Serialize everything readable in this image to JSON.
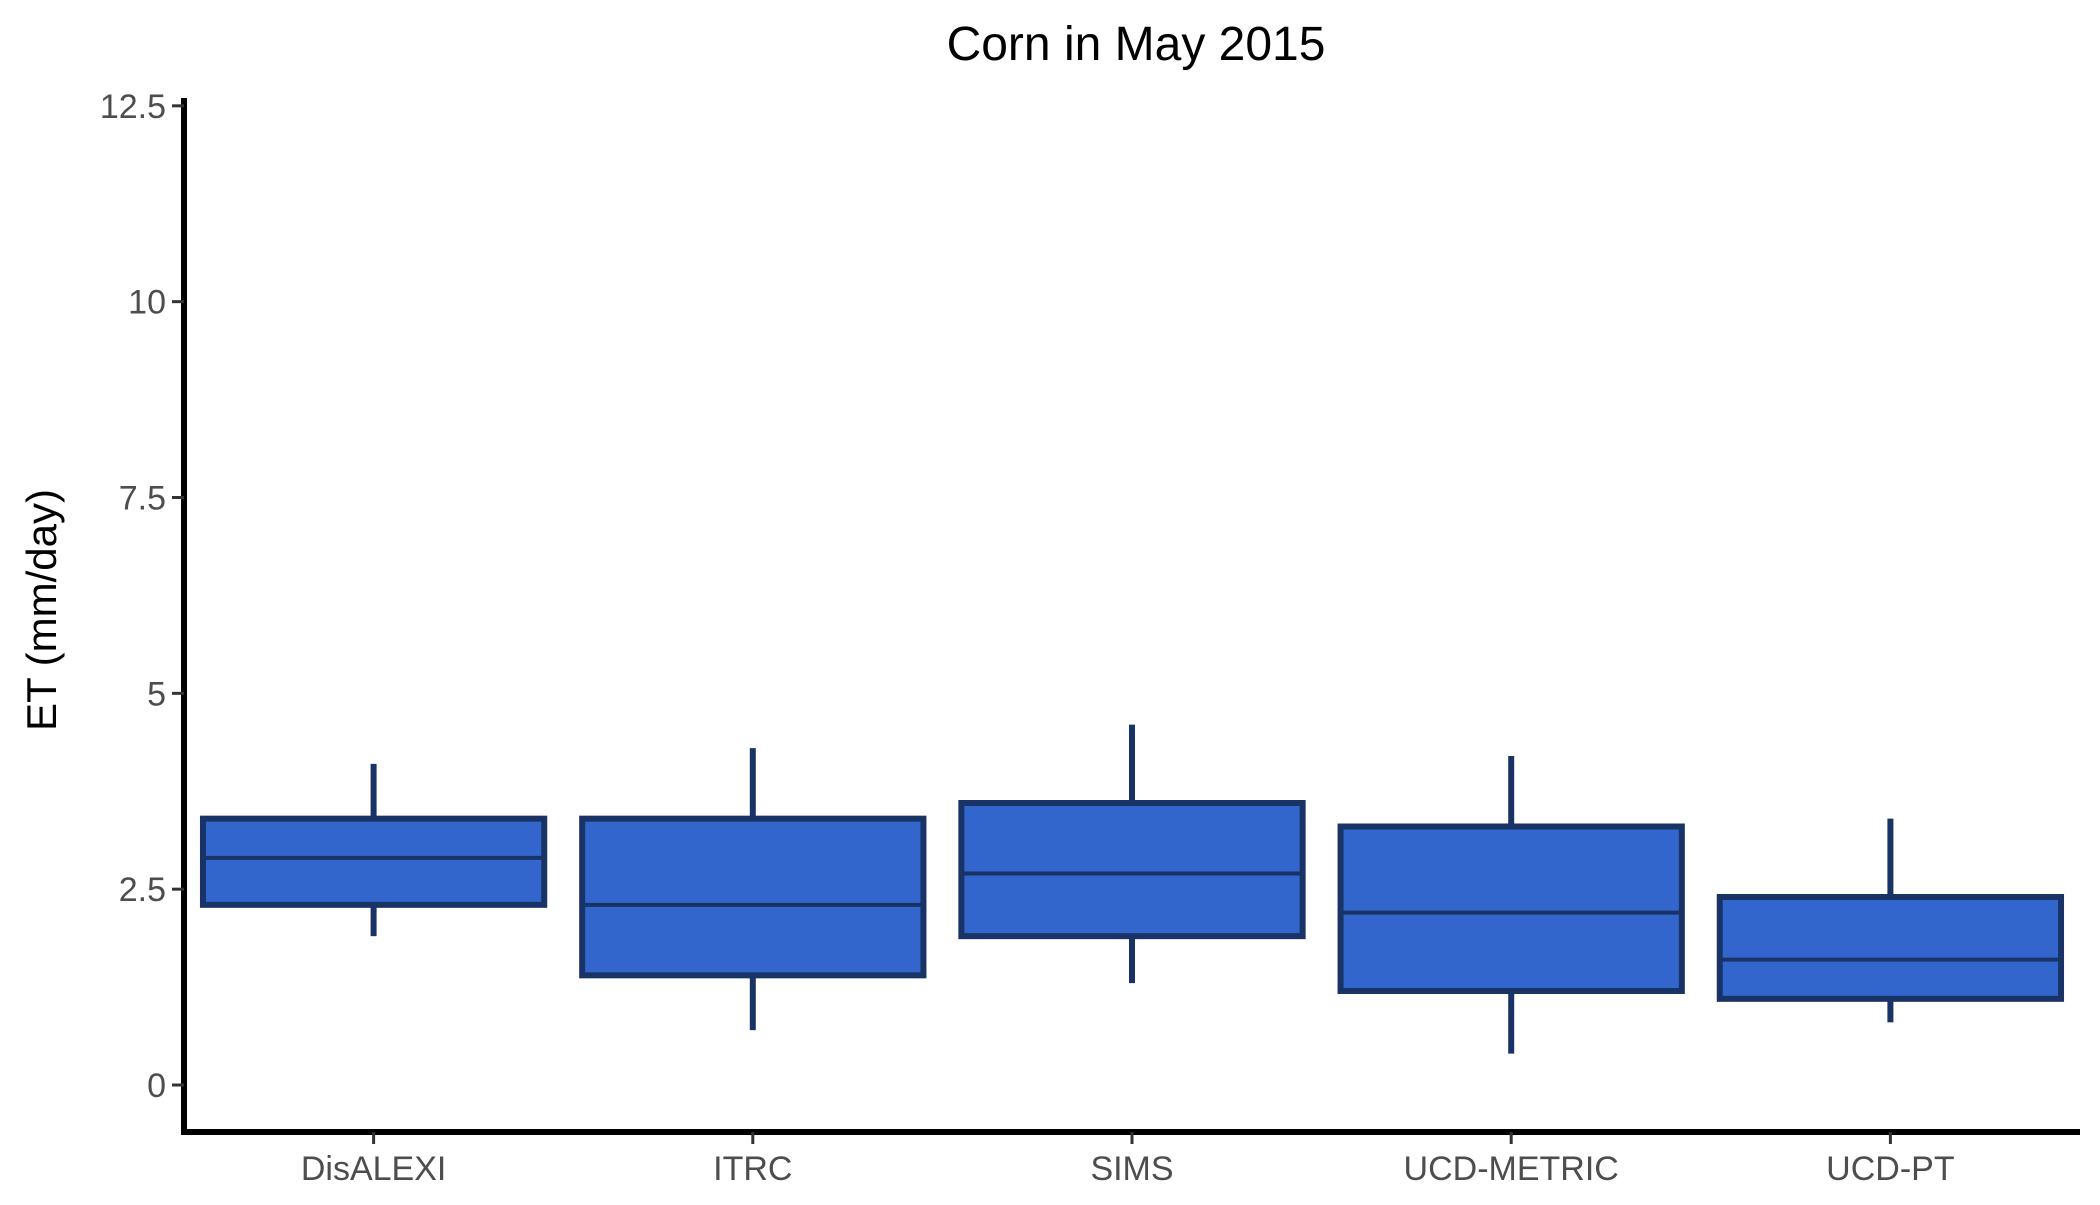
{
  "chart_data": {
    "type": "box",
    "title": "Corn in May 2015",
    "xlabel": "",
    "ylabel": "ET (mm/day)",
    "ylim": [
      -0.6,
      12.6
    ],
    "yticks": [
      0,
      2.5,
      5,
      7.5,
      10,
      12.5
    ],
    "ytick_labels": [
      "0",
      "2.5",
      "5",
      "7.5",
      "10",
      "12.5"
    ],
    "categories": [
      "DisALEXI",
      "ITRC",
      "SIMS",
      "UCD-METRIC",
      "UCD-PT"
    ],
    "boxes": [
      {
        "min": 1.9,
        "q1": 2.3,
        "median": 2.9,
        "q3": 3.4,
        "max": 4.1
      },
      {
        "min": 0.7,
        "q1": 1.4,
        "median": 2.3,
        "q3": 3.4,
        "max": 4.3
      },
      {
        "min": 1.3,
        "q1": 1.9,
        "median": 2.7,
        "q3": 3.6,
        "max": 4.6
      },
      {
        "min": 0.4,
        "q1": 1.2,
        "median": 2.2,
        "q3": 3.3,
        "max": 4.2
      },
      {
        "min": 0.8,
        "q1": 1.1,
        "median": 1.6,
        "q3": 2.4,
        "max": 3.4
      }
    ],
    "grid": false,
    "legend": "none",
    "colors": {
      "fill": "#3366cc",
      "stroke": "#1a3366"
    }
  }
}
